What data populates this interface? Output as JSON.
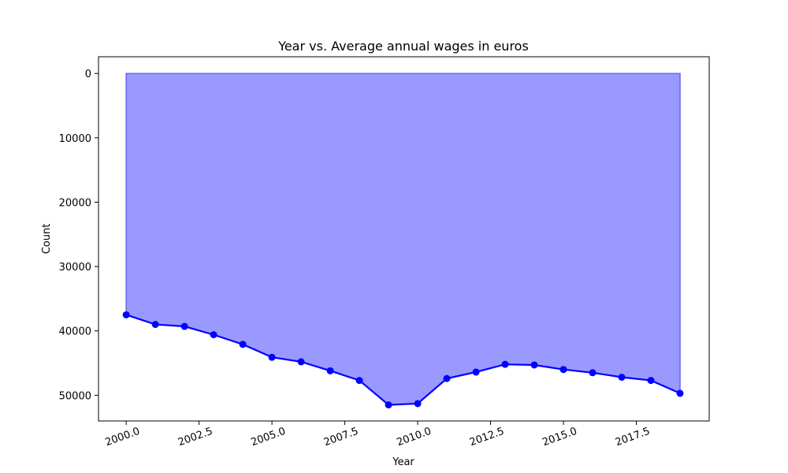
{
  "chart_data": {
    "type": "area",
    "title": "Year vs. Average annual wages in euros",
    "xlabel": "Year",
    "ylabel": "Count",
    "x": [
      2000,
      2001,
      2002,
      2003,
      2004,
      2005,
      2006,
      2007,
      2008,
      2009,
      2010,
      2011,
      2012,
      2013,
      2014,
      2015,
      2016,
      2017,
      2018,
      2019
    ],
    "series": [
      {
        "values": [
          37500,
          39000,
          39300,
          40600,
          42100,
          44100,
          44800,
          46200,
          47700,
          51500,
          51300,
          47400,
          46400,
          45200,
          45300,
          46000,
          46500,
          47200,
          47700,
          49700
        ]
      }
    ],
    "xlim": [
      1999.05,
      2020.0
    ],
    "ylim": [
      54000,
      -2600
    ],
    "y_inverted": true,
    "x_ticks": [
      2000.0,
      2002.5,
      2005.0,
      2007.5,
      2010.0,
      2012.5,
      2015.0,
      2017.5
    ],
    "x_tick_labels": [
      "2000.0",
      "2002.5",
      "2005.0",
      "2007.5",
      "2010.0",
      "2012.5",
      "2015.0",
      "2017.5"
    ],
    "y_ticks": [
      0,
      10000,
      20000,
      30000,
      40000,
      50000
    ],
    "y_tick_labels": [
      "0",
      "10000",
      "20000",
      "30000",
      "40000",
      "50000"
    ],
    "grid": false,
    "line_color": "#0000ff",
    "fill_color": "#9999ff",
    "fill_edge_color": "#6666ee"
  }
}
